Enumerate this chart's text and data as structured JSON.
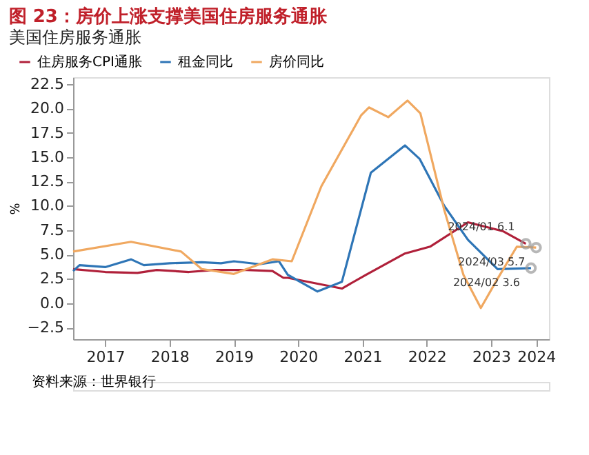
{
  "chart_data": {
    "type": "line",
    "title": "图 23：房价上涨支撑美国住房服务通胀",
    "subtitle": "美国住房服务通胀",
    "ylabel": "%",
    "legend": "top",
    "xlim": [
      2017,
      2024.4
    ],
    "xticks": [
      {
        "value": 2017.5,
        "label": "2017"
      },
      {
        "value": 2018.5,
        "label": "2018"
      },
      {
        "value": 2019.5,
        "label": "2019"
      },
      {
        "value": 2020.5,
        "label": "2020"
      },
      {
        "value": 2021.5,
        "label": "2021"
      },
      {
        "value": 2022.5,
        "label": "2022"
      },
      {
        "value": 2023.5,
        "label": "2023"
      },
      {
        "value": 2024.2,
        "label": "2024"
      }
    ],
    "ylim": [
      -3.7,
      23.2
    ],
    "yticks": [
      -2.5,
      {
        "value": 0,
        "label": "0.0"
      },
      2.5,
      {
        "value": 5,
        "label": "5.0"
      },
      7.5,
      {
        "value": 10,
        "label": "10.0"
      },
      12.5,
      {
        "value": 15,
        "label": "15.0"
      },
      17.5,
      {
        "value": 20,
        "label": "20.0"
      },
      22.5
    ],
    "series": [
      {
        "name": "住房服务CPI通胀",
        "color": "#b0203a",
        "x": [
          2017.0,
          2017.5,
          2018.0,
          2018.3,
          2018.8,
          2019.2,
          2019.7,
          2020.1,
          2020.27,
          2020.34,
          2020.8,
          2021.18,
          2021.55,
          2022.16,
          2022.55,
          2023.14,
          2023.68,
          2024.04
        ],
        "values": [
          3.5,
          3.2,
          3.1,
          3.4,
          3.2,
          3.4,
          3.4,
          3.3,
          2.6,
          2.6,
          2.0,
          1.5,
          2.9,
          5.1,
          5.8,
          8.3,
          7.4,
          6.1
        ]
      },
      {
        "name": "租金同比",
        "color": "#2e75b6",
        "x": [
          2017.0,
          2017.1,
          2017.5,
          2017.9,
          2018.1,
          2018.5,
          2019.0,
          2019.3,
          2019.5,
          2019.9,
          2020.2,
          2020.34,
          2020.8,
          2021.18,
          2021.63,
          2022.16,
          2022.39,
          2022.77,
          2023.14,
          2023.6,
          2024.12
        ],
        "values": [
          3.3,
          3.9,
          3.7,
          4.5,
          3.9,
          4.1,
          4.2,
          4.1,
          4.3,
          4.0,
          4.3,
          2.9,
          1.2,
          2.2,
          13.4,
          16.2,
          14.8,
          10.0,
          6.5,
          3.5,
          3.6
        ]
      },
      {
        "name": "房价同比",
        "color": "#f0a860",
        "x": [
          2017.0,
          2017.9,
          2018.68,
          2019.0,
          2019.5,
          2019.9,
          2020.1,
          2020.4,
          2020.86,
          2021.48,
          2021.6,
          2021.9,
          2022.2,
          2022.4,
          2022.77,
          2023.07,
          2023.34,
          2023.6,
          2023.9,
          2024.2
        ],
        "values": [
          5.3,
          6.3,
          5.3,
          3.5,
          3.0,
          4.0,
          4.5,
          4.3,
          12.0,
          19.3,
          20.1,
          19.1,
          20.8,
          19.5,
          9.6,
          2.9,
          -0.5,
          2.5,
          5.8,
          5.7
        ]
      }
    ],
    "annotations": [
      {
        "text": "2024/01 6.1",
        "x": 2024.04,
        "y": 6.1
      },
      {
        "text": "2024/03 5.7",
        "x": 2024.2,
        "y": 5.7
      },
      {
        "text": "2024/02 3.6",
        "x": 2024.12,
        "y": 3.6
      },
      "资料来源：世界银行"
    ]
  }
}
